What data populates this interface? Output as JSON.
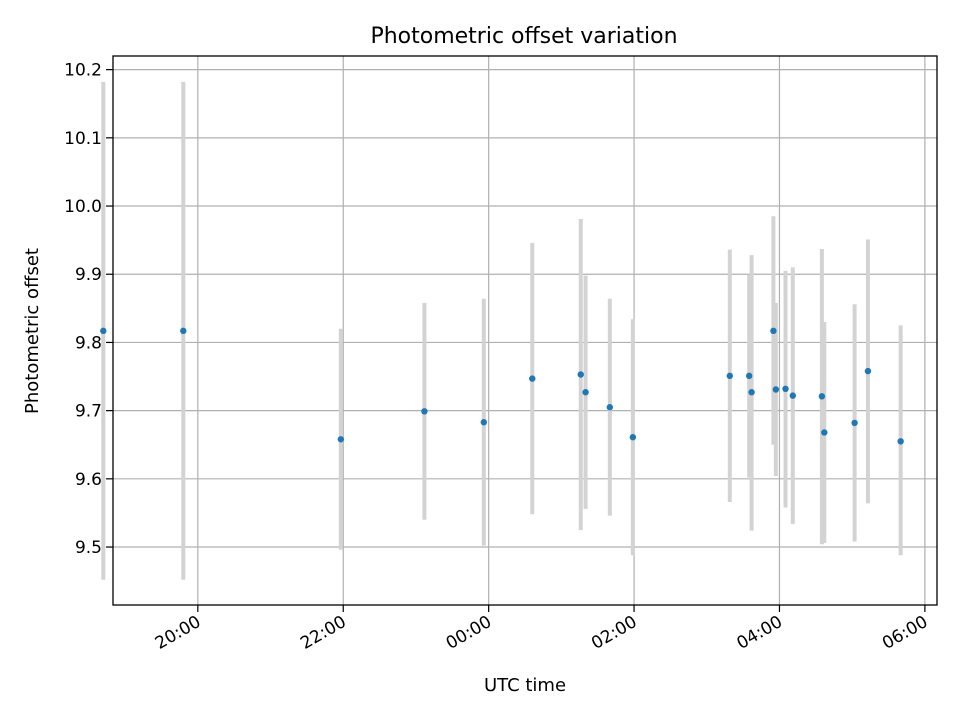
{
  "chart_data": {
    "type": "scatter",
    "title": "Photometric offset variation",
    "xlabel": "UTC time",
    "ylabel": "Photometric offset",
    "xlim": [
      "18:50",
      "06:10"
    ],
    "ylim": [
      9.415,
      10.22
    ],
    "x_ticks": [
      "20:00",
      "22:00",
      "00:00",
      "02:00",
      "04:00",
      "06:00"
    ],
    "y_ticks": [
      9.5,
      9.6,
      9.7,
      9.8,
      9.9,
      10.0,
      10.1,
      10.2
    ],
    "grid": true,
    "points": [
      {
        "x": "18:42",
        "y": 9.817,
        "err_low": 9.452,
        "err_high": 10.182
      },
      {
        "x": "19:48",
        "y": 9.817,
        "err_low": 9.452,
        "err_high": 10.182
      },
      {
        "x": "21:58",
        "y": 9.658,
        "err_low": 9.496,
        "err_high": 9.82
      },
      {
        "x": "23:07",
        "y": 9.699,
        "err_low": 9.54,
        "err_high": 9.858
      },
      {
        "x": "23:56",
        "y": 9.683,
        "err_low": 9.502,
        "err_high": 9.864
      },
      {
        "x": "00:36",
        "y": 9.747,
        "err_low": 9.548,
        "err_high": 9.946
      },
      {
        "x": "01:16",
        "y": 9.753,
        "err_low": 9.525,
        "err_high": 9.981
      },
      {
        "x": "01:20",
        "y": 9.727,
        "err_low": 9.556,
        "err_high": 9.898
      },
      {
        "x": "01:40",
        "y": 9.705,
        "err_low": 9.546,
        "err_high": 9.864
      },
      {
        "x": "01:59",
        "y": 9.661,
        "err_low": 9.488,
        "err_high": 9.834
      },
      {
        "x": "03:19",
        "y": 9.751,
        "err_low": 9.566,
        "err_high": 9.936
      },
      {
        "x": "03:35",
        "y": 9.751,
        "err_low": 9.602,
        "err_high": 9.899
      },
      {
        "x": "03:37",
        "y": 9.727,
        "err_low": 9.524,
        "err_high": 9.928
      },
      {
        "x": "03:55",
        "y": 9.817,
        "err_low": 9.65,
        "err_high": 9.985
      },
      {
        "x": "03:57",
        "y": 9.731,
        "err_low": 9.604,
        "err_high": 9.858
      },
      {
        "x": "04:05",
        "y": 9.732,
        "err_low": 9.558,
        "err_high": 9.905
      },
      {
        "x": "04:11",
        "y": 9.722,
        "err_low": 9.534,
        "err_high": 9.91
      },
      {
        "x": "04:35",
        "y": 9.721,
        "err_low": 9.504,
        "err_high": 9.937
      },
      {
        "x": "04:37",
        "y": 9.668,
        "err_low": 9.506,
        "err_high": 9.83
      },
      {
        "x": "05:02",
        "y": 9.682,
        "err_low": 9.508,
        "err_high": 9.856
      },
      {
        "x": "05:13",
        "y": 9.758,
        "err_low": 9.564,
        "err_high": 9.951
      },
      {
        "x": "05:40",
        "y": 9.655,
        "err_low": 9.488,
        "err_high": 9.825
      }
    ]
  }
}
